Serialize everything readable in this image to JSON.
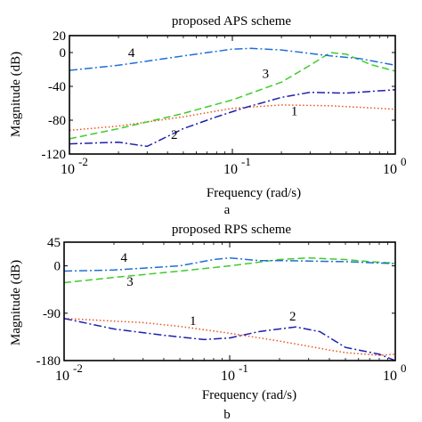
{
  "chart_data": [
    {
      "type": "line",
      "title": "proposed APS scheme",
      "xlabel": "Frequency  (rad/s)",
      "ylabel": "Magnitude (dB)",
      "caption": "a",
      "xscale": "log",
      "xlim": [
        0.01,
        1
      ],
      "ylim": [
        -120,
        20
      ],
      "yticks": [
        {
          "value": 20,
          "label": "20"
        },
        {
          "value": 0,
          "label": "0"
        },
        {
          "value": -40,
          "label": "-40"
        },
        {
          "value": -80,
          "label": "-80"
        },
        {
          "value": -120,
          "label": "-120"
        }
      ],
      "xticks": [
        {
          "value": 0.01,
          "base": "10",
          "exp": "-2"
        },
        {
          "value": 0.1,
          "base": "10",
          "exp": "-1"
        },
        {
          "value": 1,
          "base": "10",
          "exp": "0"
        }
      ],
      "series": [
        {
          "name": "1",
          "color": "#e8541e",
          "dash": "1.5,2.5",
          "x": [
            0.01,
            0.02,
            0.05,
            0.1,
            0.2,
            0.4,
            1
          ],
          "y": [
            -92,
            -87,
            -76,
            -66,
            -62,
            -63,
            -67
          ],
          "label_at": [
            0.24,
            -74
          ]
        },
        {
          "name": "2",
          "color": "#1f1fb0",
          "dash": "9,3,2,3",
          "x": [
            0.01,
            0.02,
            0.03,
            0.05,
            0.08,
            0.12,
            0.2,
            0.3,
            0.5,
            1
          ],
          "y": [
            -108,
            -106,
            -111,
            -90,
            -76,
            -65,
            -53,
            -47,
            -48,
            -44
          ],
          "label_at": [
            0.044,
            -102
          ]
        },
        {
          "name": "3",
          "color": "#3fcc2a",
          "dash": "8,4",
          "x": [
            0.01,
            0.02,
            0.05,
            0.1,
            0.2,
            0.3,
            0.4,
            0.5,
            0.7,
            1
          ],
          "y": [
            -102,
            -90,
            -72,
            -56,
            -35,
            -15,
            0,
            -2,
            -14,
            -22
          ],
          "label_at": [
            0.16,
            -30
          ]
        },
        {
          "name": "4",
          "color": "#1f6fd6",
          "dash": "9,3,2,3",
          "x": [
            0.01,
            0.02,
            0.05,
            0.1,
            0.13,
            0.2,
            0.4,
            0.6,
            1
          ],
          "y": [
            -21,
            -15,
            -4,
            4,
            5,
            3,
            -4,
            -7,
            -15
          ],
          "label_at": [
            0.024,
            -5
          ]
        }
      ]
    },
    {
      "type": "line",
      "title": "proposed RPS scheme",
      "xlabel": "Frequency  (rad/s)",
      "ylabel": "Magnitude (dB)",
      "caption": "b",
      "xscale": "log",
      "xlim": [
        0.01,
        1
      ],
      "ylim": [
        -180,
        45
      ],
      "yticks": [
        {
          "value": 45,
          "label": "45"
        },
        {
          "value": 0,
          "label": "0"
        },
        {
          "value": -90,
          "label": "-90"
        },
        {
          "value": -180,
          "label": "-180"
        }
      ],
      "xticks": [
        {
          "value": 0.01,
          "base": "10",
          "exp": "-2"
        },
        {
          "value": 0.1,
          "base": "10",
          "exp": "-1"
        },
        {
          "value": 1,
          "base": "10",
          "exp": "0"
        }
      ],
      "series": [
        {
          "name": "1",
          "color": "#e8541e",
          "dash": "1.5,2.5",
          "x": [
            0.01,
            0.03,
            0.05,
            0.1,
            0.2,
            0.4,
            0.5,
            0.8,
            1
          ],
          "y": [
            -100,
            -108,
            -115,
            -128,
            -143,
            -160,
            -165,
            -170,
            -168
          ],
          "label_at": [
            0.06,
            -112
          ]
        },
        {
          "name": "2",
          "color": "#1f1fb0",
          "dash": "9,3,2,3",
          "x": [
            0.01,
            0.02,
            0.04,
            0.07,
            0.1,
            0.15,
            0.25,
            0.35,
            0.5,
            0.8,
            1
          ],
          "y": [
            -100,
            -120,
            -132,
            -140,
            -137,
            -125,
            -116,
            -125,
            -155,
            -168,
            -180
          ],
          "label_at": [
            0.24,
            -104
          ]
        },
        {
          "name": "3",
          "color": "#3fcc2a",
          "dash": "8,4",
          "x": [
            0.01,
            0.02,
            0.05,
            0.1,
            0.2,
            0.3,
            0.5,
            0.7,
            1
          ],
          "y": [
            -32,
            -22,
            -10,
            0,
            12,
            15,
            12,
            8,
            5
          ],
          "label_at": [
            0.025,
            -38
          ]
        },
        {
          "name": "4",
          "color": "#1f6fd6",
          "dash": "9,3,2,3",
          "x": [
            0.01,
            0.02,
            0.05,
            0.08,
            0.1,
            0.15,
            0.2,
            0.5,
            1
          ],
          "y": [
            -10,
            -8,
            0,
            12,
            15,
            10,
            10,
            8,
            4
          ],
          "label_at": [
            0.023,
            8
          ]
        }
      ]
    }
  ]
}
